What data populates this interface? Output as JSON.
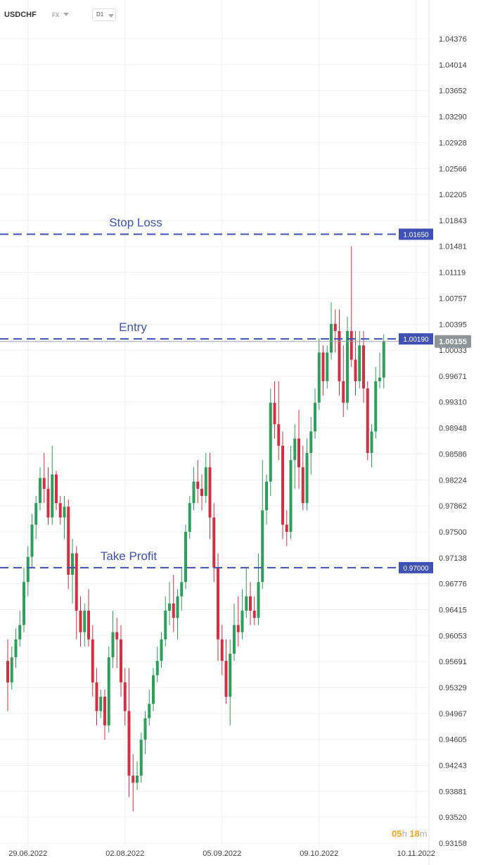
{
  "header": {
    "symbol": "USDCHF",
    "market": "FX",
    "timeframe": "D1"
  },
  "countdown": {
    "hours": "05",
    "hours_unit": "h",
    "minutes": "18",
    "minutes_unit": "m"
  },
  "colors": {
    "bull": "#2e9e5b",
    "bear": "#d23042",
    "level_line": "#3f51b5",
    "level_label_bg": "#3f51b5",
    "current_label_bg": "#8d9599",
    "grid": "#efefef"
  },
  "chart_data": {
    "type": "candlestick",
    "ylim": [
      0.93158,
      1.0455
    ],
    "y_ticks": [
      "1.04376",
      "1.04014",
      "1.03652",
      "1.03290",
      "1.02928",
      "1.02566",
      "1.02205",
      "1.01843",
      "1.01481",
      "1.01119",
      "1.00757",
      "1.00395",
      "1.00033",
      "0.99671",
      "0.99310",
      "0.98948",
      "0.98586",
      "0.98224",
      "0.97862",
      "0.97500",
      "0.97138",
      "0.96776",
      "0.96415",
      "0.96053",
      "0.95691",
      "0.95329",
      "0.94967",
      "0.94605",
      "0.94243",
      "0.93881",
      "0.93520",
      "0.93158"
    ],
    "x_ticks": [
      {
        "label": "29.06.2022",
        "index": 1
      },
      {
        "label": "02.08.2022",
        "index": 25
      },
      {
        "label": "05.09.2022",
        "index": 49
      },
      {
        "label": "09.10.2022",
        "index": 73
      },
      {
        "label": "10.11.2022",
        "index": 97
      }
    ],
    "levels": [
      {
        "name": "Stop Loss",
        "value": 1.0165,
        "label": "1.01650"
      },
      {
        "name": "Entry",
        "value": 1.0019,
        "label": "1.00190"
      },
      {
        "name": "Take Profit",
        "value": 0.97,
        "label": "0.97000"
      }
    ],
    "current_price": {
      "value": 1.00155,
      "label": "1.00155"
    },
    "ohlc": [
      [
        0.957,
        0.96,
        0.95,
        0.954
      ],
      [
        0.954,
        0.959,
        0.953,
        0.9575
      ],
      [
        0.9575,
        0.9615,
        0.956,
        0.96
      ],
      [
        0.96,
        0.964,
        0.959,
        0.962
      ],
      [
        0.962,
        0.97,
        0.961,
        0.968
      ],
      [
        0.968,
        0.973,
        0.966,
        0.9715
      ],
      [
        0.9715,
        0.9775,
        0.97,
        0.976
      ],
      [
        0.976,
        0.98,
        0.974,
        0.979
      ],
      [
        0.979,
        0.984,
        0.978,
        0.9825
      ],
      [
        0.9825,
        0.986,
        0.979,
        0.981
      ],
      [
        0.981,
        0.984,
        0.976,
        0.977
      ],
      [
        0.977,
        0.987,
        0.976,
        0.983
      ],
      [
        0.983,
        0.9835,
        0.978,
        0.979
      ],
      [
        0.979,
        0.98,
        0.976,
        0.977
      ],
      [
        0.977,
        0.98,
        0.974,
        0.9785
      ],
      [
        0.9785,
        0.9795,
        0.967,
        0.969
      ],
      [
        0.969,
        0.974,
        0.965,
        0.972
      ],
      [
        0.972,
        0.973,
        0.96,
        0.964
      ],
      [
        0.964,
        0.966,
        0.959,
        0.961
      ],
      [
        0.961,
        0.965,
        0.959,
        0.964
      ],
      [
        0.964,
        0.967,
        0.959,
        0.96
      ],
      [
        0.96,
        0.962,
        0.952,
        0.954
      ],
      [
        0.954,
        0.956,
        0.948,
        0.95
      ],
      [
        0.95,
        0.953,
        0.949,
        0.952
      ],
      [
        0.952,
        0.953,
        0.946,
        0.948
      ],
      [
        0.948,
        0.959,
        0.947,
        0.9575
      ],
      [
        0.9575,
        0.964,
        0.956,
        0.961
      ],
      [
        0.961,
        0.963,
        0.956,
        0.96
      ],
      [
        0.96,
        0.962,
        0.952,
        0.954
      ],
      [
        0.954,
        0.956,
        0.948,
        0.95
      ],
      [
        0.95,
        0.956,
        0.938,
        0.941
      ],
      [
        0.941,
        0.944,
        0.936,
        0.94
      ],
      [
        0.94,
        0.943,
        0.939,
        0.941
      ],
      [
        0.941,
        0.947,
        0.94,
        0.946
      ],
      [
        0.946,
        0.95,
        0.944,
        0.949
      ],
      [
        0.949,
        0.953,
        0.948,
        0.951
      ],
      [
        0.951,
        0.956,
        0.95,
        0.955
      ],
      [
        0.955,
        0.959,
        0.954,
        0.957
      ],
      [
        0.957,
        0.961,
        0.956,
        0.96
      ],
      [
        0.96,
        0.966,
        0.959,
        0.964
      ],
      [
        0.964,
        0.968,
        0.962,
        0.965
      ],
      [
        0.965,
        0.969,
        0.961,
        0.963
      ],
      [
        0.963,
        0.967,
        0.96,
        0.966
      ],
      [
        0.966,
        0.97,
        0.964,
        0.968
      ],
      [
        0.968,
        0.976,
        0.967,
        0.975
      ],
      [
        0.975,
        0.98,
        0.974,
        0.979
      ],
      [
        0.979,
        0.984,
        0.978,
        0.982
      ],
      [
        0.982,
        0.985,
        0.979,
        0.981
      ],
      [
        0.981,
        0.983,
        0.978,
        0.98
      ],
      [
        0.98,
        0.986,
        0.979,
        0.984
      ],
      [
        0.984,
        0.986,
        0.974,
        0.977
      ],
      [
        0.977,
        0.979,
        0.968,
        0.97
      ],
      [
        0.97,
        0.972,
        0.957,
        0.96
      ],
      [
        0.96,
        0.962,
        0.955,
        0.957
      ],
      [
        0.957,
        0.96,
        0.951,
        0.952
      ],
      [
        0.952,
        0.96,
        0.948,
        0.958
      ],
      [
        0.958,
        0.965,
        0.957,
        0.962
      ],
      [
        0.962,
        0.966,
        0.959,
        0.961
      ],
      [
        0.961,
        0.967,
        0.96,
        0.964
      ],
      [
        0.964,
        0.97,
        0.963,
        0.966
      ],
      [
        0.966,
        0.968,
        0.962,
        0.964
      ],
      [
        0.964,
        0.966,
        0.962,
        0.963
      ],
      [
        0.963,
        0.972,
        0.962,
        0.968
      ],
      [
        0.968,
        0.985,
        0.967,
        0.978
      ],
      [
        0.978,
        0.983,
        0.976,
        0.982
      ],
      [
        0.982,
        0.995,
        0.98,
        0.993
      ],
      [
        0.993,
        0.996,
        0.988,
        0.99
      ],
      [
        0.99,
        0.996,
        0.985,
        0.987
      ],
      [
        0.987,
        0.989,
        0.974,
        0.976
      ],
      [
        0.976,
        0.978,
        0.973,
        0.975
      ],
      [
        0.975,
        0.987,
        0.974,
        0.985
      ],
      [
        0.985,
        0.99,
        0.981,
        0.988
      ],
      [
        0.988,
        0.992,
        0.981,
        0.984
      ],
      [
        0.984,
        0.987,
        0.978,
        0.979
      ],
      [
        0.979,
        0.988,
        0.978,
        0.986
      ],
      [
        0.986,
        0.991,
        0.983,
        0.989
      ],
      [
        0.989,
        0.995,
        0.988,
        0.993
      ],
      [
        0.993,
        1.002,
        0.992,
        1.0
      ],
      [
        1.0,
        1.001,
        0.994,
        0.996
      ],
      [
        0.996,
        1.001,
        0.995,
        1.0
      ],
      [
        1.0,
        1.007,
        0.999,
        1.004
      ],
      [
        1.004,
        1.006,
        1.0,
        1.003
      ],
      [
        1.003,
        1.006,
        0.994,
        0.996
      ],
      [
        0.996,
        1.001,
        0.991,
        0.993
      ],
      [
        0.993,
        1.005,
        0.992,
        1.003
      ],
      [
        1.003,
        1.0148,
        0.998,
        0.999
      ],
      [
        0.999,
        1.003,
        0.994,
        0.996
      ],
      [
        0.996,
        1.003,
        0.995,
        1.001
      ],
      [
        1.001,
        1.003,
        0.993,
        0.995
      ],
      [
        0.995,
        0.996,
        0.985,
        0.986
      ],
      [
        0.986,
        0.99,
        0.984,
        0.989
      ],
      [
        0.989,
        0.998,
        0.988,
        0.996
      ],
      [
        0.996,
        1.0,
        0.995,
        0.9965
      ],
      [
        0.9965,
        1.0025,
        0.995,
        1.0016
      ]
    ]
  }
}
